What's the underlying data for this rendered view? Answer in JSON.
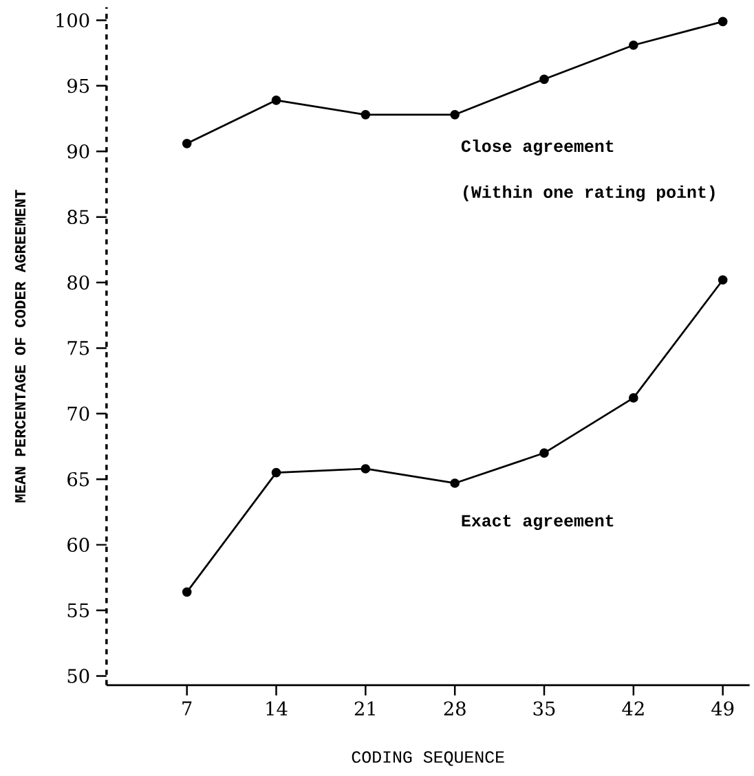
{
  "chart_data": {
    "type": "line",
    "xlabel": "CODING SEQUENCE",
    "ylabel": "MEAN PERCENTAGE OF CODER AGREEMENT",
    "categories": [
      "7",
      "14",
      "21",
      "28",
      "35",
      "42",
      "49"
    ],
    "series": [
      {
        "name": "Close agreement",
        "color": "#000000",
        "values": [
          90.6,
          93.9,
          92.8,
          92.8,
          95.5,
          98.1,
          99.9
        ]
      },
      {
        "name": "Exact agreement",
        "color": "#000000",
        "values": [
          56.4,
          65.5,
          65.8,
          64.7,
          67.0,
          71.2,
          80.2
        ]
      }
    ],
    "annotations": [
      "(Within one rating point)"
    ],
    "ylim": [
      49.3,
      101
    ],
    "yticks": [
      50,
      55,
      60,
      65,
      70,
      75,
      80,
      85,
      90,
      95,
      100
    ],
    "marker": "circle",
    "line_style": "solid"
  }
}
